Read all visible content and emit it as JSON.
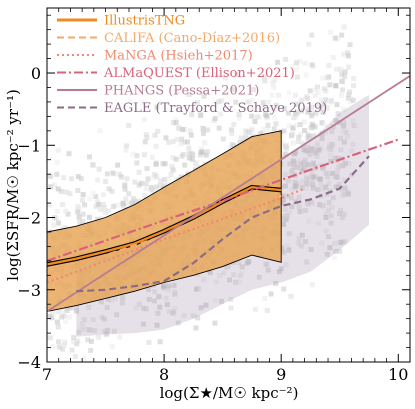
{
  "chart_data": {
    "type": "line",
    "xlabel": "log(Σ★/M☉ kpc⁻²)",
    "ylabel": "log(ΣSFR/M☉ kpc⁻² yr⁻¹)",
    "xlim": [
      7.0,
      10.1
    ],
    "ylim": [
      -4.0,
      0.9
    ],
    "x_ticks": [
      7,
      8,
      9,
      10
    ],
    "y_ticks": [
      -4,
      -3,
      -2,
      -1,
      0
    ],
    "legend_position": "top-left",
    "series": [
      {
        "name": "IllustrisTNG",
        "style": "solid-thick",
        "color": "#f08a1c",
        "x": [
          7.0,
          7.25,
          7.5,
          7.75,
          8.0,
          8.25,
          8.5,
          8.75,
          9.0
        ],
        "y": [
          -2.65,
          -2.57,
          -2.47,
          -2.36,
          -2.19,
          -2.0,
          -1.78,
          -1.58,
          -1.62
        ],
        "band_upper": [
          -2.2,
          -2.12,
          -2.0,
          -1.82,
          -1.58,
          -1.35,
          -1.12,
          -0.88,
          -0.8
        ],
        "band_lower": [
          -3.3,
          -3.22,
          -3.12,
          -3.02,
          -2.9,
          -2.8,
          -2.68,
          -2.52,
          -2.62
        ]
      },
      {
        "name": "CALIFA (Cano-Díaz+2016)",
        "style": "dashed",
        "color": "#f3a96a",
        "x": [
          7.0,
          7.5,
          8.0,
          8.5,
          9.0
        ],
        "y": [
          -2.8,
          -2.52,
          -2.25,
          -1.97,
          -1.7
        ]
      },
      {
        "name": "MaNGA (Hsieh+2017)",
        "style": "dotted",
        "color": "#ef8a6e",
        "x": [
          7.0,
          7.5,
          8.0,
          8.5,
          9.0,
          9.2
        ],
        "y": [
          -2.9,
          -2.6,
          -2.3,
          -2.02,
          -1.73,
          -1.6
        ]
      },
      {
        "name": "ALMaQUEST (Ellison+2021)",
        "style": "dashdot",
        "color": "#d9627a",
        "x": [
          7.0,
          7.5,
          8.0,
          8.5,
          9.0,
          9.5,
          10.0
        ],
        "y": [
          -2.6,
          -2.32,
          -2.04,
          -1.77,
          -1.48,
          -1.2,
          -0.92
        ]
      },
      {
        "name": "PHANGS (Pessa+2021)",
        "style": "solid",
        "color": "#b77c92",
        "x": [
          7.0,
          10.1
        ],
        "y": [
          -3.3,
          -0.04
        ]
      },
      {
        "name": "EAGLE (Trayford & Schaye 2019)",
        "style": "dashed",
        "color": "#8b6b86",
        "x": [
          7.25,
          7.5,
          7.75,
          8.0,
          8.25,
          8.5,
          8.75,
          9.0,
          9.25,
          9.5,
          9.75
        ],
        "y": [
          -3.02,
          -3.0,
          -2.95,
          -2.88,
          -2.63,
          -2.3,
          -2.0,
          -1.84,
          -1.75,
          -1.6,
          -1.15
        ],
        "band_upper": [
          -2.5,
          -2.45,
          -2.4,
          -2.3,
          -2.05,
          -1.75,
          -1.45,
          -1.2,
          -0.95,
          -0.55,
          -0.3
        ],
        "band_lower": [
          -3.65,
          -3.62,
          -3.6,
          -3.55,
          -3.4,
          -3.2,
          -3.0,
          -2.9,
          -2.75,
          -2.45,
          -2.1
        ]
      }
    ]
  }
}
